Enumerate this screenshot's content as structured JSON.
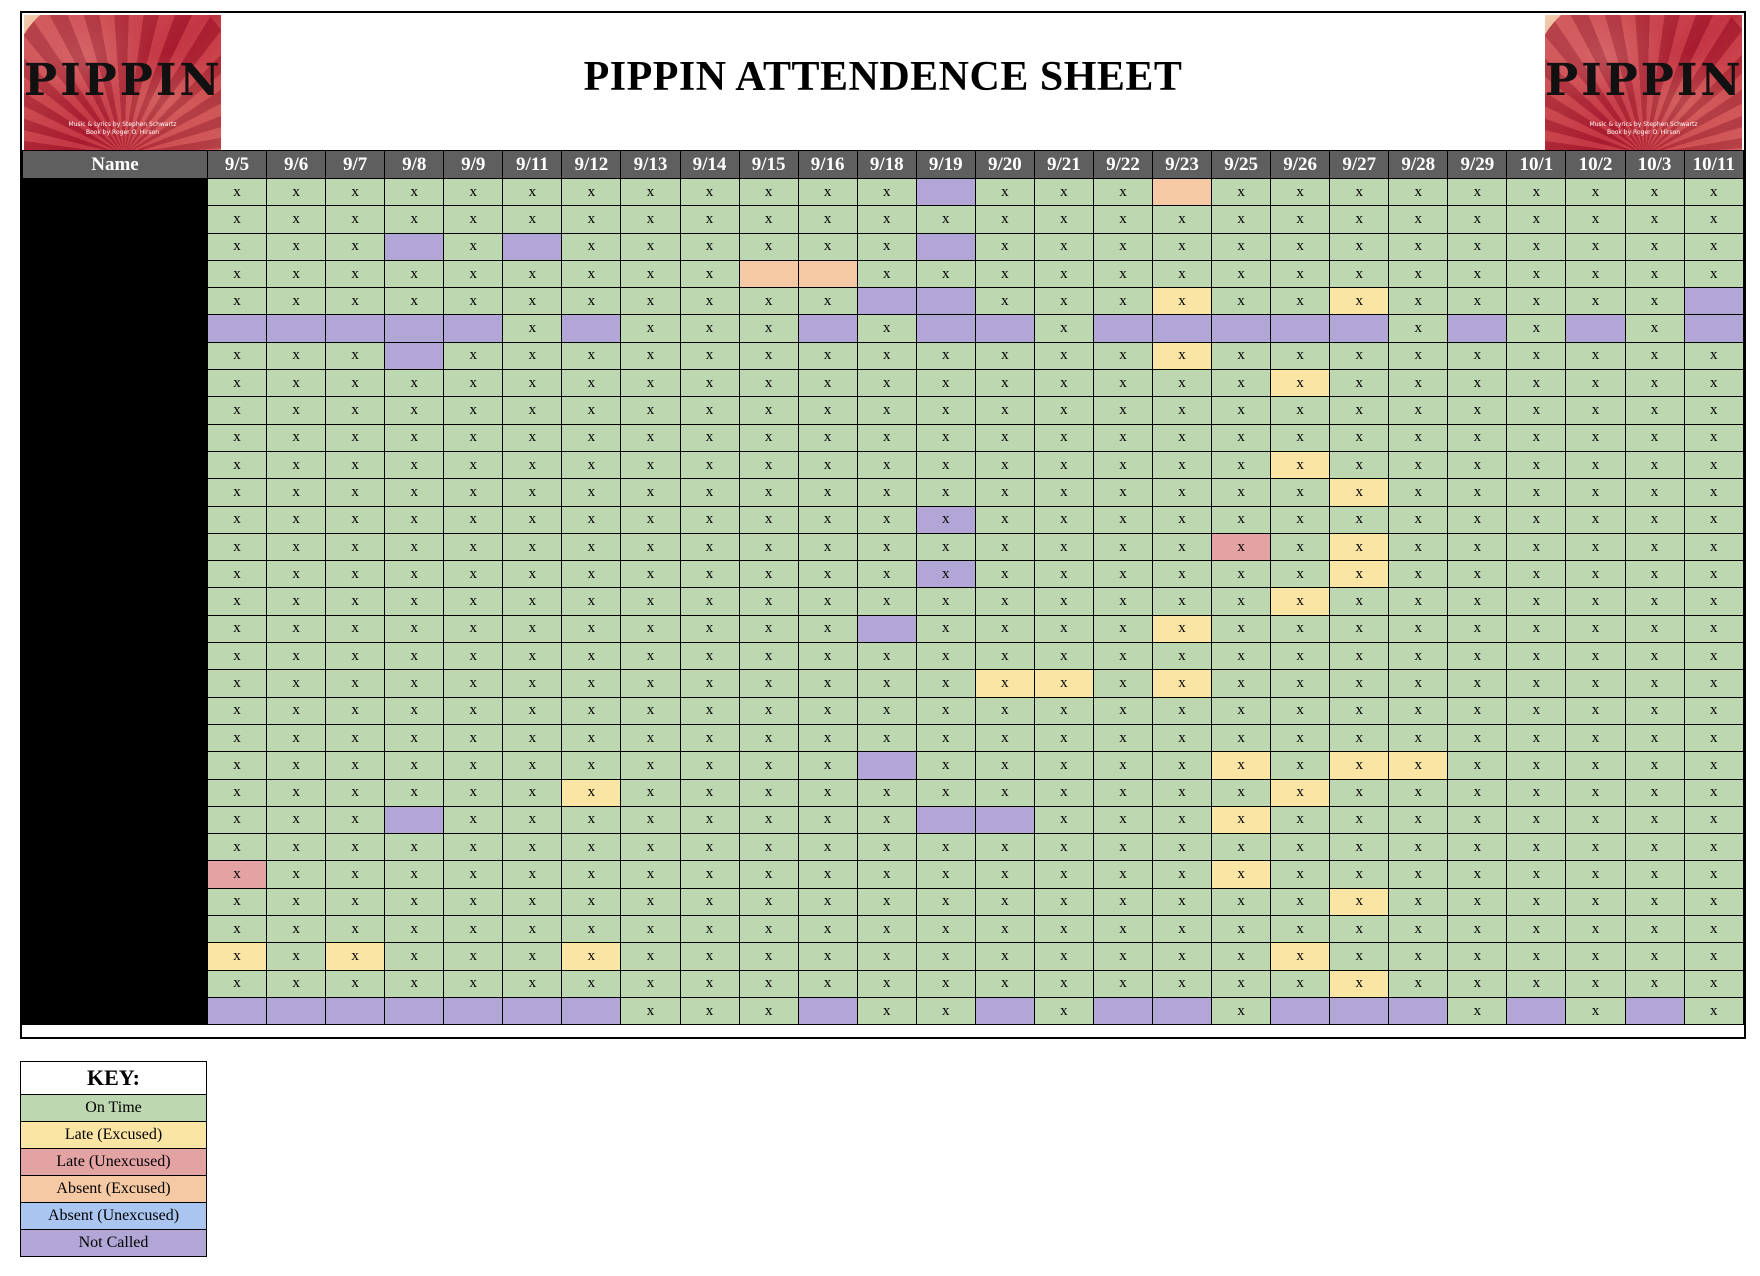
{
  "title": "PIPPIN ATTENDENCE SHEET",
  "logo": {
    "word": "PIPPIN",
    "credit_line1": "Music & Lyrics by Stephen Schwartz",
    "credit_line2": "Book by Roger O. Hirson"
  },
  "table": {
    "name_header": "Name",
    "dates": [
      "9/5",
      "9/6",
      "9/7",
      "9/8",
      "9/9",
      "9/11",
      "9/12",
      "9/13",
      "9/14",
      "9/15",
      "9/16",
      "9/18",
      "9/19",
      "9/20",
      "9/21",
      "9/22",
      "9/23",
      "9/25",
      "9/26",
      "9/27",
      "9/28",
      "9/29",
      "10/1",
      "10/2",
      "10/3",
      "10/11"
    ],
    "mark": "x",
    "rows": [
      "oooooooooooonoooaooooooooo",
      "oooooooooooooooooooooooooo",
      "ooononoooooonooooooooooooo",
      "oooooooooaaooooooooooooooo",
      "oooooooooooNNoooloolooooon",
      "nnnnnonooonoNNoNnnnnoNonon",
      "ooonooooooooooooloooooooo o",
      "oooooooooooooooooolooooooo",
      "oooooooooooooooooooooooooo",
      "oooooooooooooooooooooooooo",
      "oooooooooooooooooolooooooo",
      "ooooooooooooooooooolooooooo",
      "ooooooooooooxooooooooooooo",
      "oooooooooooooooooUolooooooo",
      "ooooooooooooxooooooloooooo",
      "oooooooooooooooooolooooooo",
      "ooooooooooonooooloooooooooo",
      "oooooooooooooooooooooooooo",
      "oooooooooooooLLoloooooooooo",
      "oooooooooooooooooooooooooo",
      "oooooooooooooooooooooooooo",
      "ooooooooooonooooolollooooooo",
      "ooooooLoooooooooooloooooooo",
      "ooonoooooooonnooolooooooooo",
      "oooooooooooooooooooooooooo",
      "Uooooooooooooooooloooooooooo",
      "ooooooooooooooooooolooooooo",
      "oooooooooooooooooooooooooo",
      "LoLoooLooooooooooolooooooo",
      "ooooooooooooooooooolooooooo",
      "nnnnnnnooonooNoNnonnnonono"
    ]
  },
  "key": {
    "header": "KEY:",
    "items": [
      {
        "label": "On Time",
        "code": "o",
        "color": "#bdd7b0"
      },
      {
        "label": "Late (Excused)",
        "code": "l",
        "color": "#fbe5a5"
      },
      {
        "label": "Late (Unexcused)",
        "code": "u",
        "color": "#e3a3a3"
      },
      {
        "label": "Absent (Excused)",
        "code": "a",
        "color": "#f5c9a3"
      },
      {
        "label": "Absent (Unexcused)",
        "code": "b",
        "color": "#a9c5f0"
      },
      {
        "label": "Not Called",
        "code": "n",
        "color": "#b2a6d6"
      }
    ]
  }
}
